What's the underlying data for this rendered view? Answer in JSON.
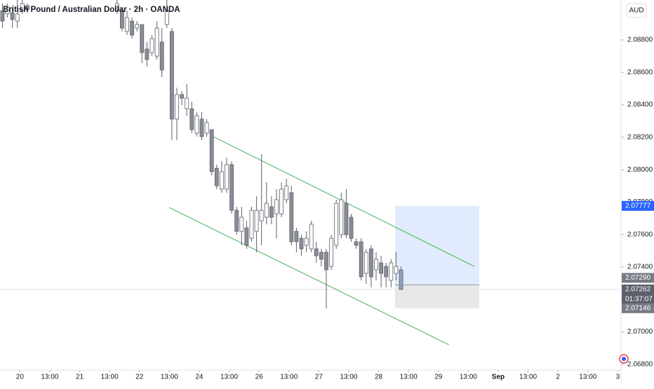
{
  "chart_data": {
    "type": "candlestick",
    "title": "British Pound / Australian Dollar · 2h · OANDA",
    "currency": "AUD",
    "countdown": "01:37:07",
    "ylim": [
      2.06765,
      2.09046
    ],
    "xlim": [
      -0.49,
      124.15
    ],
    "yticks": [
      {
        "value": 2.088,
        "label": "2.08800"
      },
      {
        "value": 2.086,
        "label": "2.08600"
      },
      {
        "value": 2.084,
        "label": "2.08400"
      },
      {
        "value": 2.082,
        "label": "2.08200"
      },
      {
        "value": 2.08,
        "label": "2.08000"
      },
      {
        "value": 2.078,
        "label": "2.07800"
      },
      {
        "value": 2.076,
        "label": "2.07600"
      },
      {
        "value": 2.074,
        "label": "2.07400"
      },
      {
        "value": 2.07,
        "label": "2.07000"
      },
      {
        "value": 2.068,
        "label": "2.06800"
      }
    ],
    "xticks": [
      {
        "value": 3.5,
        "label": "20"
      },
      {
        "value": 9.5,
        "label": "13:00"
      },
      {
        "value": 15.5,
        "label": "21"
      },
      {
        "value": 21.5,
        "label": "13:00"
      },
      {
        "value": 27.5,
        "label": "22"
      },
      {
        "value": 33.5,
        "label": "13:00"
      },
      {
        "value": 39.5,
        "label": "24"
      },
      {
        "value": 45.5,
        "label": "13:00"
      },
      {
        "value": 51.5,
        "label": "26"
      },
      {
        "value": 57.5,
        "label": "13:00"
      },
      {
        "value": 63.5,
        "label": "27"
      },
      {
        "value": 69.5,
        "label": "13:00"
      },
      {
        "value": 75.5,
        "label": "28"
      },
      {
        "value": 81.5,
        "label": "13:00"
      },
      {
        "value": 87.5,
        "label": "29"
      },
      {
        "value": 93.5,
        "label": "13:00"
      },
      {
        "value": 99.5,
        "label": "Sep"
      },
      {
        "value": 105.5,
        "label": "13:00"
      },
      {
        "value": 111.5,
        "label": "2"
      },
      {
        "value": 117.5,
        "label": "13:00"
      },
      {
        "value": 123.5,
        "label": "3"
      }
    ],
    "up_color": "#ffffff",
    "down_color": "#8a8d96",
    "edge_color": "#5d606b",
    "last_color": "#8fa3bc",
    "candles": {
      "x": [
        0,
        1,
        2,
        3,
        4,
        5,
        23,
        24,
        25,
        26,
        27,
        28,
        29,
        30,
        31,
        32,
        33,
        34,
        35,
        36,
        37,
        38,
        39,
        40,
        41,
        42,
        43,
        44,
        45,
        46,
        47,
        48,
        49,
        50,
        51,
        52,
        53,
        54,
        55,
        56,
        57,
        58,
        59,
        60,
        61,
        62,
        63,
        64,
        65,
        66,
        67,
        68,
        69,
        70,
        71,
        72,
        73,
        74,
        75,
        76,
        77,
        78,
        79,
        80
      ],
      "open": [
        2.08981,
        2.0896,
        2.08968,
        2.08916,
        2.08981,
        2.09011,
        2.08981,
        2.08981,
        2.08852,
        2.08916,
        2.08873,
        2.08895,
        2.08744,
        2.08722,
        2.087,
        2.08787,
        2.08895,
        2.08852,
        2.08312,
        2.08463,
        2.08376,
        2.08376,
        2.08225,
        2.08312,
        2.08225,
        2.08247,
        2.08009,
        2.0788,
        2.0788,
        2.08031,
        2.0775,
        2.0762,
        2.07642,
        2.07577,
        2.0762,
        2.07685,
        2.07707,
        2.07772,
        2.07728,
        2.07728,
        2.07815,
        2.07858,
        2.0762,
        2.07577,
        2.07534,
        2.07512,
        2.07512,
        2.07491,
        2.07491,
        2.07404,
        2.07534,
        2.07599,
        2.07793,
        2.07707,
        2.07556,
        2.07556,
        2.07361,
        2.07512,
        2.07383,
        2.07426,
        2.07404,
        2.07318,
        2.07361,
        2.07383
      ],
      "high": [
        2.09024,
        2.09024,
        2.09003,
        2.0905,
        2.0905,
        2.09024,
        2.0905,
        2.09003,
        2.08981,
        2.08938,
        2.08916,
        2.08895,
        2.08787,
        2.0883,
        2.08916,
        2.08873,
        2.0905,
        2.08873,
        2.08506,
        2.08484,
        2.08528,
        2.0842,
        2.08355,
        2.08355,
        2.08312,
        2.08247,
        2.08031,
        2.08052,
        2.08074,
        2.08052,
        2.07772,
        2.07772,
        2.07685,
        2.07772,
        2.07836,
        2.08096,
        2.07923,
        2.07836,
        2.0788,
        2.07923,
        2.07944,
        2.07901,
        2.07642,
        2.07599,
        2.0762,
        2.07685,
        2.07556,
        2.07512,
        2.07512,
        2.07599,
        2.07815,
        2.07858,
        2.0788,
        2.07728,
        2.07577,
        2.07577,
        2.07512,
        2.07534,
        2.07491,
        2.07469,
        2.07426,
        2.07448,
        2.07491,
        2.07404
      ],
      "low": [
        2.08873,
        2.08938,
        2.08873,
        2.08873,
        2.0896,
        2.08968,
        2.0896,
        2.08852,
        2.0883,
        2.08808,
        2.08852,
        2.08657,
        2.08636,
        2.087,
        2.08679,
        2.08571,
        2.08873,
        2.08182,
        2.08182,
        2.08398,
        2.08333,
        2.08225,
        2.08204,
        2.08182,
        2.08204,
        2.07966,
        2.0788,
        2.07858,
        2.07858,
        2.07728,
        2.07599,
        2.07534,
        2.07512,
        2.07556,
        2.07491,
        2.07534,
        2.07664,
        2.07664,
        2.07577,
        2.07707,
        2.07793,
        2.07534,
        2.07491,
        2.07469,
        2.07491,
        2.07491,
        2.07426,
        2.07404,
        2.07145,
        2.07383,
        2.07512,
        2.07577,
        2.07577,
        2.07556,
        2.07512,
        2.07318,
        2.07296,
        2.07275,
        2.07318,
        2.07275,
        2.07275,
        2.07275,
        2.07318,
        2.07262
      ],
      "close": [
        2.08916,
        2.09003,
        2.08925,
        2.0896,
        2.09024,
        2.08986,
        2.09024,
        2.08873,
        2.08938,
        2.0883,
        2.08895,
        2.08722,
        2.08679,
        2.08808,
        2.08873,
        2.08614,
        2.08981,
        2.08312,
        2.08463,
        2.08441,
        2.08441,
        2.08247,
        2.08333,
        2.08204,
        2.0829,
        2.07988,
        2.07901,
        2.07988,
        2.08031,
        2.0775,
        2.0762,
        2.07707,
        2.07534,
        2.0775,
        2.0775,
        2.0775,
        2.07793,
        2.07707,
        2.07815,
        2.0788,
        2.07901,
        2.07556,
        2.07556,
        2.07512,
        2.07577,
        2.07664,
        2.07469,
        2.07448,
        2.07383,
        2.07577,
        2.07793,
        2.07815,
        2.07599,
        2.07577,
        2.07534,
        2.0734,
        2.07491,
        2.0734,
        2.07448,
        2.07361,
        2.0734,
        2.07426,
        2.07404,
        2.07262
      ]
    },
    "lines": [
      {
        "x": [
          42.3,
          94.7
        ],
        "y": [
          2.08204,
          2.07404
        ],
        "color": "#4caf50"
      },
      {
        "x": [
          33.45,
          89.6
        ],
        "y": [
          2.07767,
          2.06921
        ],
        "color": "#4caf50"
      }
    ],
    "position": {
      "x": [
        78.8,
        95.7
      ],
      "target": 2.07777,
      "entry": 2.0729,
      "stop": 2.07146,
      "target_color": "#dbe7fd",
      "stop_color": "#e8e8e8"
    },
    "price_labels": [
      {
        "value": 2.07777,
        "label": "2.07777",
        "color": "#2962ff"
      },
      {
        "value": 2.0729,
        "label": "2.07290",
        "color": "#787b86"
      },
      {
        "value": 2.07262,
        "label": "2.07262",
        "color": "#5d606b"
      },
      {
        "value": 2.07146,
        "label": "2.07146",
        "color": "#787b86"
      }
    ]
  }
}
